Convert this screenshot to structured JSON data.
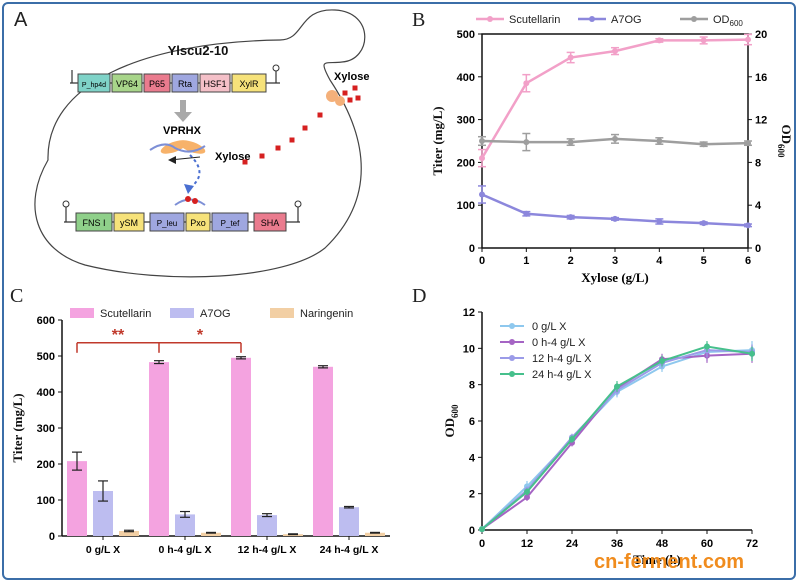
{
  "panels": {
    "A": {
      "label": "A",
      "strain": "Ylscu2-10",
      "construct_top": [
        "P_hp4d",
        "VP64",
        "P65",
        "Rta",
        "HSF1",
        "XylR"
      ],
      "protein": "VPRHX",
      "inducer_1": "Xylose",
      "inducer_2": "Xylose",
      "construct_bottom": [
        "FNS I",
        "ySM",
        "P_leu",
        "Pxo",
        "P_tef",
        "SHA"
      ],
      "colors": {
        "P_hp4d": "#7fd3c8",
        "VP64": "#a8d58a",
        "P65": "#ea7b8e",
        "Rta": "#9fa7e0",
        "HSF1": "#f4c0c8",
        "XylR": "#f6e27a",
        "FNS I": "#8fd08a",
        "ySM": "#f6e27a",
        "P_leu": "#9fa7e0",
        "Pxo": "#f6e27a",
        "P_tef": "#9fa7e0",
        "SHA": "#ea7b8e",
        "xylose": "#d62020"
      }
    },
    "B": {
      "label": "B"
    },
    "C": {
      "label": "C"
    },
    "D": {
      "label": "D"
    }
  },
  "chart_data": [
    {
      "panel": "B",
      "type": "line",
      "xlabel": "Xylose (g/L)",
      "ylabel": "Titer (mg/L)",
      "y2label": "OD600",
      "x": [
        0,
        1,
        2,
        3,
        4,
        5,
        6
      ],
      "xlim": [
        0,
        6
      ],
      "ylim": [
        0,
        500
      ],
      "y2lim": [
        0,
        20
      ],
      "xticks": [
        "0",
        "1",
        "2",
        "3",
        "4",
        "5",
        "6"
      ],
      "yticks": [
        "0",
        "100",
        "200",
        "300",
        "400",
        "500"
      ],
      "y2ticks": [
        "0",
        "4",
        "8",
        "12",
        "16",
        "20"
      ],
      "legend_position": "top",
      "series": [
        {
          "name": "Scutellarin",
          "axis": "left",
          "color": "#f2a0c8",
          "values": [
            210,
            385,
            445,
            460,
            485,
            485,
            487
          ],
          "errors": [
            20,
            20,
            12,
            8,
            4,
            8,
            12
          ]
        },
        {
          "name": "A7OG",
          "axis": "left",
          "color": "#8c87dc",
          "values": [
            125,
            80,
            72,
            68,
            62,
            58,
            53
          ],
          "errors": [
            20,
            5,
            4,
            3,
            6,
            3,
            3
          ]
        },
        {
          "name": "OD600",
          "axis": "right",
          "color": "#9e9e9e",
          "values": [
            10,
            9.9,
            9.9,
            10.2,
            10.0,
            9.7,
            9.8
          ],
          "errors": [
            0.4,
            0.8,
            0.3,
            0.4,
            0.3,
            0.2,
            0.2
          ]
        }
      ]
    },
    {
      "panel": "C",
      "type": "bar",
      "ylabel": "Titer (mg/L)",
      "ylim": [
        0,
        600
      ],
      "yticks": [
        "0",
        "100",
        "200",
        "300",
        "400",
        "500",
        "600"
      ],
      "categories": [
        "0 g/L X",
        "0 h-4 g/L X",
        "12 h-4 g/L X",
        "24 h-4 g/L X"
      ],
      "legend_position": "top",
      "series": [
        {
          "name": "Scutellarin",
          "color": "#f4a3e0",
          "values": [
            208,
            483,
            495,
            470
          ],
          "errors": [
            25,
            4,
            3,
            3
          ]
        },
        {
          "name": "A7OG",
          "color": "#bdbdf0",
          "values": [
            125,
            60,
            58,
            80
          ],
          "errors": [
            28,
            8,
            4,
            2
          ]
        },
        {
          "name": "Naringenin",
          "color": "#f2cfa4",
          "values": [
            14,
            9,
            5,
            9
          ],
          "errors": [
            2,
            1,
            1,
            1
          ]
        }
      ],
      "annotations": [
        {
          "text": "**",
          "from": 0,
          "to": 1
        },
        {
          "text": "*",
          "from": 1,
          "to": 2
        }
      ]
    },
    {
      "panel": "D",
      "type": "line",
      "xlabel": "Time (h)",
      "ylabel": "OD600",
      "x": [
        0,
        12,
        24,
        36,
        48,
        60,
        72
      ],
      "xlim": [
        0,
        72
      ],
      "ylim": [
        0,
        12
      ],
      "xticks": [
        "0",
        "12",
        "24",
        "36",
        "48",
        "60",
        "72"
      ],
      "yticks": [
        "0",
        "2",
        "4",
        "6",
        "8",
        "10",
        "12"
      ],
      "legend_position": "top-left",
      "series": [
        {
          "name": "0 g/L X",
          "color": "#8ec8ee",
          "values": [
            0.05,
            2.4,
            5.0,
            7.6,
            9.0,
            9.8,
            9.9
          ],
          "errors": [
            0,
            0.3,
            0.2,
            0.3,
            0.3,
            0.5,
            0.5
          ]
        },
        {
          "name": "0 h-4 g/L X",
          "color": "#a564c4",
          "values": [
            0.05,
            1.8,
            4.8,
            7.8,
            9.4,
            9.6,
            9.7
          ],
          "errors": [
            0,
            0.2,
            0.2,
            0.3,
            0.3,
            0.4,
            0.5
          ]
        },
        {
          "name": "12 h-4 g/L X",
          "color": "#9b9be8",
          "values": [
            0.05,
            2.2,
            5.1,
            7.7,
            9.2,
            9.9,
            9.8
          ],
          "errors": [
            0,
            0.2,
            0.2,
            0.3,
            0.3,
            0.4,
            0.4
          ]
        },
        {
          "name": "24 h-4 g/L X",
          "color": "#46c08c",
          "values": [
            0.05,
            2.1,
            5.0,
            7.9,
            9.3,
            10.1,
            9.7
          ],
          "errors": [
            0,
            0.2,
            0.2,
            0.3,
            0.3,
            0.3,
            0.4
          ]
        }
      ]
    }
  ],
  "watermark": "cn-ferment.com"
}
